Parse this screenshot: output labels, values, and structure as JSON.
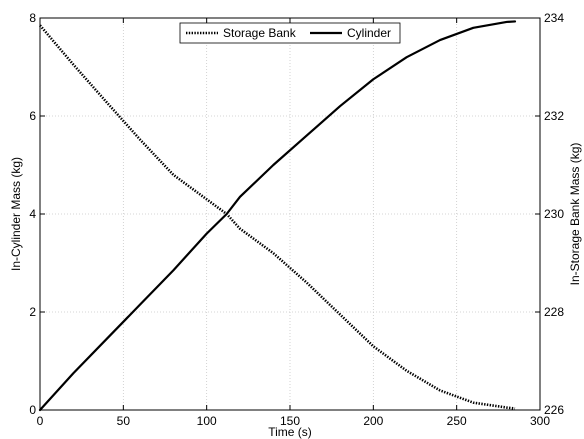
{
  "chart_data": {
    "type": "line",
    "xlabel": "Time (s)",
    "ylabel_left": "In-Cylinder Mass (kg)",
    "ylabel_right": "In-Storage Bank Mass (kg)",
    "xlim": [
      0,
      300
    ],
    "ylim_left": [
      0,
      8
    ],
    "ylim_right": [
      226,
      234
    ],
    "xticks": [
      "0",
      "50",
      "100",
      "150",
      "200",
      "250",
      "300"
    ],
    "yticks_left": [
      "0",
      "2",
      "4",
      "6",
      "8"
    ],
    "yticks_right": [
      "226",
      "228",
      "230",
      "232",
      "234"
    ],
    "grid": true,
    "legend_position": "top-center",
    "series": [
      {
        "name": "Storage Bank",
        "axis": "right",
        "style": "dotted",
        "color": "#000000",
        "x": [
          0,
          20,
          40,
          60,
          80,
          100,
          112,
          120,
          140,
          160,
          180,
          200,
          220,
          240,
          260,
          280,
          285
        ],
        "y": [
          233.85,
          233.05,
          232.28,
          231.52,
          230.8,
          230.3,
          230.0,
          229.7,
          229.2,
          228.6,
          227.95,
          227.3,
          226.8,
          226.4,
          226.15,
          226.05,
          226.03
        ]
      },
      {
        "name": "Cylinder",
        "axis": "left",
        "style": "solid",
        "color": "#000000",
        "x": [
          0,
          20,
          40,
          60,
          80,
          100,
          112,
          120,
          140,
          160,
          180,
          200,
          220,
          240,
          260,
          280,
          285
        ],
        "y": [
          0,
          0.75,
          1.45,
          2.15,
          2.85,
          3.6,
          4.0,
          4.35,
          5.0,
          5.6,
          6.2,
          6.75,
          7.2,
          7.55,
          7.8,
          7.92,
          7.93
        ]
      }
    ]
  }
}
